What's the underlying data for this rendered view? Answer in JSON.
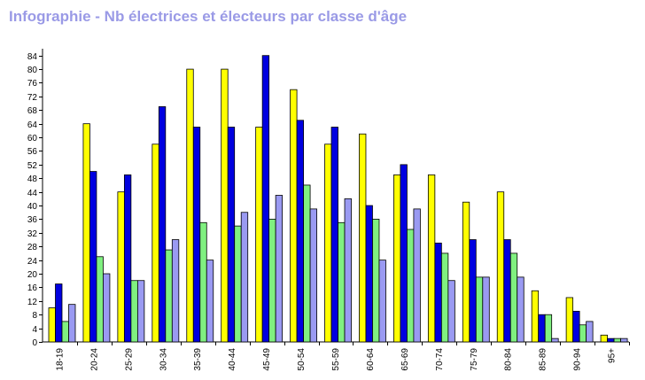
{
  "title": "Infographie - Nb électrices et électeurs par classe d'âge",
  "chart_data": {
    "type": "bar",
    "title": "Infographie - Nb électrices et électeurs par classe d'âge",
    "xlabel": "",
    "ylabel": "",
    "ylim": [
      0,
      86
    ],
    "yticks": [
      0,
      4,
      8,
      12,
      16,
      20,
      24,
      28,
      32,
      36,
      40,
      44,
      48,
      52,
      56,
      60,
      64,
      68,
      72,
      76,
      80,
      84
    ],
    "grid": false,
    "categories": [
      "18-19",
      "20-24",
      "25-29",
      "30-34",
      "35-39",
      "40-44",
      "45-49",
      "50-54",
      "55-59",
      "60-64",
      "65-69",
      "70-74",
      "75-79",
      "80-84",
      "85-89",
      "90-94",
      "95+"
    ],
    "series": [
      {
        "color": "#ffff00",
        "values": [
          10,
          64,
          44,
          58,
          80,
          80,
          63,
          74,
          58,
          61,
          49,
          49,
          41,
          44,
          15,
          13,
          2
        ]
      },
      {
        "color": "#0000e0",
        "values": [
          17,
          50,
          49,
          69,
          63,
          63,
          84,
          65,
          63,
          40,
          52,
          29,
          30,
          30,
          8,
          9,
          1
        ]
      },
      {
        "color": "#80f080",
        "values": [
          6,
          25,
          18,
          27,
          35,
          34,
          36,
          46,
          35,
          36,
          33,
          26,
          19,
          26,
          8,
          5,
          1
        ]
      },
      {
        "color": "#9a9af2",
        "values": [
          11,
          20,
          18,
          30,
          24,
          38,
          43,
          39,
          42,
          24,
          39,
          18,
          19,
          19,
          1,
          6,
          1
        ]
      }
    ]
  }
}
